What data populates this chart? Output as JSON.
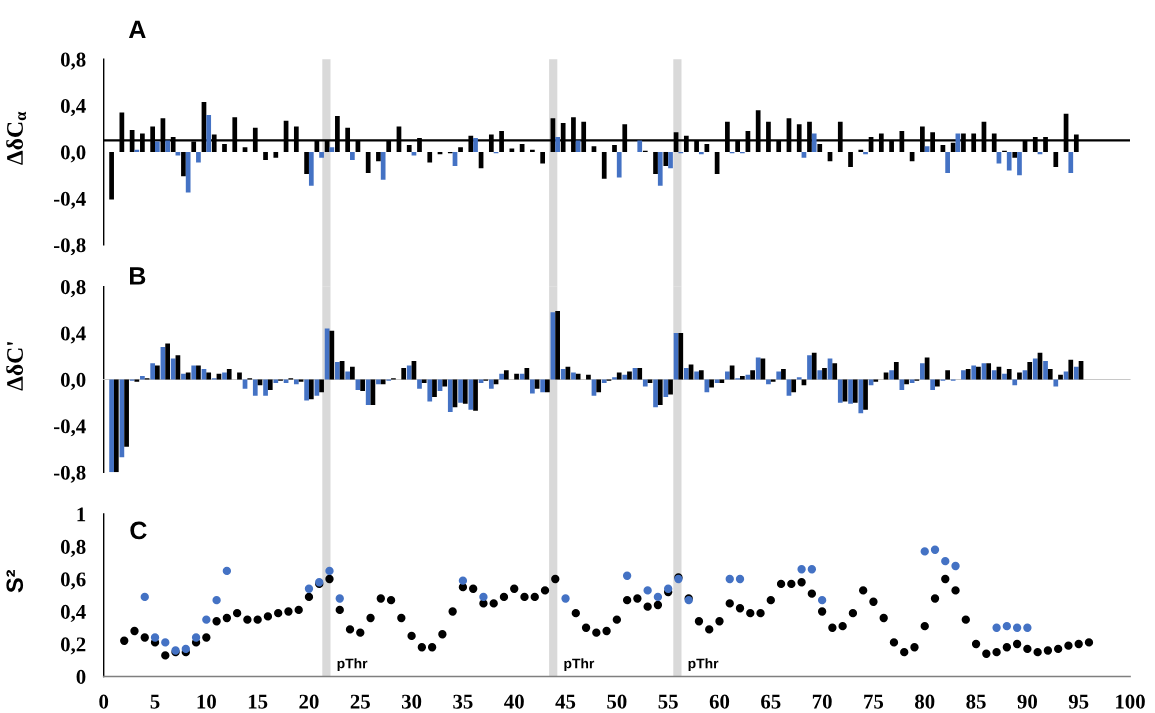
{
  "chart_data": [
    {
      "type": "bar",
      "title": "A",
      "ylabel": "ΔδC$_{α}$",
      "x": [
        1,
        2,
        3,
        4,
        5,
        6,
        7,
        8,
        9,
        10,
        11,
        12,
        13,
        14,
        15,
        16,
        17,
        18,
        19,
        20,
        21,
        22,
        23,
        24,
        25,
        26,
        27,
        28,
        29,
        30,
        31,
        32,
        33,
        34,
        35,
        36,
        37,
        38,
        39,
        40,
        41,
        42,
        43,
        44,
        45,
        46,
        47,
        48,
        49,
        50,
        51,
        52,
        53,
        54,
        55,
        56,
        57,
        58,
        59,
        60,
        61,
        62,
        63,
        64,
        65,
        66,
        67,
        68,
        69,
        70,
        71,
        72,
        73,
        74,
        75,
        76,
        77,
        78,
        79,
        80,
        81,
        82,
        83,
        84,
        85,
        86,
        87,
        88,
        89,
        90,
        91,
        92,
        93,
        94,
        95
      ],
      "series": [
        {
          "color": "#000000",
          "values": [
            -0.41,
            0.34,
            0.19,
            0.16,
            0.22,
            0.29,
            0.13,
            -0.21,
            0.09,
            0.43,
            0.15,
            0.07,
            0.3,
            0.04,
            0.21,
            -0.07,
            -0.05,
            0.27,
            0.22,
            -0.19,
            0.1,
            0.1,
            0.31,
            0.21,
            0.1,
            -0.18,
            -0.08,
            0.1,
            0.22,
            0.06,
            0.12,
            -0.09,
            -0.02,
            -0.01,
            0.04,
            0.14,
            -0.14,
            0.15,
            0.18,
            0.03,
            0.07,
            0.02,
            -0.1,
            0.29,
            0.25,
            0.3,
            0.26,
            0.05,
            -0.23,
            0.06,
            0.24,
            null,
            0.01,
            -0.19,
            -0.12,
            0.17,
            0.14,
            0.1,
            0.07,
            -0.19,
            0.26,
            0.1,
            0.18,
            0.36,
            0.26,
            0.1,
            0.29,
            0.24,
            0.26,
            0.07,
            -0.08,
            0.26,
            -0.13,
            0.02,
            0.13,
            0.16,
            0.1,
            0.18,
            -0.08,
            0.22,
            0.17,
            0.06,
            0.08,
            0.16,
            0.16,
            0.26,
            0.16,
            0.01,
            -0.05,
            0.1,
            0.13,
            0.13,
            -0.13,
            0.33,
            0.15
          ]
        },
        {
          "color": "#4472c4",
          "values": [
            null,
            null,
            0.02,
            null,
            0.09,
            0.1,
            -0.03,
            -0.35,
            -0.09,
            0.32,
            null,
            null,
            null,
            null,
            null,
            null,
            null,
            null,
            null,
            -0.29,
            -0.05,
            0.04,
            null,
            -0.07,
            null,
            null,
            -0.24,
            null,
            null,
            -0.03,
            null,
            null,
            null,
            -0.12,
            null,
            0.12,
            null,
            -0.01,
            null,
            null,
            null,
            null,
            null,
            0.13,
            null,
            0.1,
            null,
            null,
            null,
            -0.22,
            null,
            0.1,
            null,
            -0.29,
            -0.14,
            -0.01,
            null,
            -0.02,
            null,
            null,
            -0.01,
            -0.01,
            null,
            null,
            null,
            null,
            null,
            -0.05,
            0.16,
            null,
            null,
            null,
            null,
            -0.02,
            null,
            null,
            null,
            null,
            null,
            0.05,
            null,
            -0.18,
            0.16,
            null,
            null,
            null,
            -0.1,
            -0.16,
            -0.2,
            null,
            -0.02,
            null,
            null,
            -0.18,
            null
          ]
        }
      ],
      "xlim": [
        0,
        100
      ],
      "ylim": [
        -0.8,
        0.8
      ],
      "yticks": [
        {
          "value": 0.8,
          "label": "0,8"
        },
        {
          "value": 0.4,
          "label": "0,4"
        },
        {
          "value": 0.0,
          "label": "0,0"
        },
        {
          "value": -0.4,
          "label": "-0,4"
        },
        {
          "value": -0.8,
          "label": "-0,8"
        }
      ],
      "tick_labels": "y",
      "ref_lines": [
        {
          "axis": "y",
          "value": 0.1,
          "color": "#000000"
        }
      ],
      "bands": [
        {
          "axis": "x",
          "from": 21.3,
          "to": 22.1,
          "color": "#d9d9d9"
        },
        {
          "axis": "x",
          "from": 43.4,
          "to": 44.2,
          "color": "#d9d9d9"
        },
        {
          "axis": "x",
          "from": 55.5,
          "to": 56.3,
          "color": "#d9d9d9"
        }
      ]
    },
    {
      "type": "bar",
      "title": "B",
      "ylabel": "ΔδC'",
      "x": [
        1,
        2,
        3,
        4,
        5,
        6,
        7,
        8,
        9,
        10,
        11,
        12,
        13,
        14,
        15,
        16,
        17,
        18,
        19,
        20,
        21,
        22,
        23,
        24,
        25,
        26,
        27,
        28,
        29,
        30,
        31,
        32,
        33,
        34,
        35,
        36,
        37,
        38,
        39,
        40,
        41,
        42,
        43,
        44,
        45,
        46,
        47,
        48,
        49,
        50,
        51,
        52,
        53,
        54,
        55,
        56,
        57,
        58,
        59,
        60,
        61,
        62,
        63,
        64,
        65,
        66,
        67,
        68,
        69,
        70,
        71,
        72,
        73,
        74,
        75,
        76,
        77,
        78,
        79,
        80,
        81,
        82,
        83,
        84,
        85,
        86,
        87,
        88,
        89,
        90,
        91,
        92,
        93,
        94,
        95
      ],
      "series": [
        {
          "color": "#4472c4",
          "values": [
            -0.8,
            -0.67,
            -0.01,
            0.03,
            0.14,
            0.28,
            0.18,
            0.05,
            0.12,
            0.09,
            0.01,
            0.06,
            null,
            -0.08,
            -0.14,
            -0.14,
            -0.03,
            -0.03,
            -0.04,
            -0.18,
            -0.14,
            0.44,
            0.15,
            0.07,
            -0.09,
            -0.22,
            -0.04,
            -0.01,
            null,
            0.12,
            -0.08,
            -0.19,
            -0.1,
            -0.28,
            -0.2,
            -0.26,
            -0.03,
            -0.08,
            0.05,
            null,
            0.05,
            -0.12,
            -0.11,
            0.58,
            0.09,
            0.06,
            null,
            -0.14,
            -0.03,
            0.02,
            0.04,
            0.1,
            -0.06,
            -0.24,
            -0.15,
            0.4,
            0.1,
            0.07,
            -0.11,
            -0.03,
            0.07,
            0.01,
            0.04,
            0.19,
            -0.04,
            0.07,
            -0.14,
            0.02,
            0.21,
            0.08,
            0.18,
            -0.2,
            -0.21,
            -0.29,
            -0.05,
            null,
            0.08,
            -0.09,
            -0.03,
            0.14,
            -0.09,
            -0.01,
            -0.01,
            0.08,
            0.12,
            0.14,
            0.08,
            0.05,
            -0.05,
            0.08,
            0.18,
            0.16,
            -0.06,
            0.07,
            0.11
          ]
        },
        {
          "color": "#000000",
          "values": [
            -0.8,
            -0.58,
            -0.02,
            0.01,
            0.12,
            0.31,
            0.21,
            0.06,
            0.12,
            0.06,
            0.05,
            0.09,
            0.06,
            0.01,
            -0.05,
            -0.09,
            -0.01,
            0.01,
            -0.02,
            -0.17,
            -0.11,
            0.42,
            0.16,
            0.11,
            -0.1,
            -0.22,
            -0.04,
            0.01,
            0.1,
            0.16,
            -0.03,
            -0.15,
            -0.06,
            -0.24,
            -0.21,
            -0.27,
            -0.01,
            -0.04,
            0.08,
            0.05,
            0.1,
            -0.08,
            -0.11,
            0.59,
            0.11,
            0.05,
            0.04,
            -0.11,
            -0.01,
            0.06,
            0.07,
            0.1,
            -0.03,
            -0.22,
            -0.13,
            0.4,
            0.13,
            0.08,
            -0.07,
            -0.03,
            0.12,
            0.03,
            0.08,
            0.18,
            -0.02,
            0.09,
            -0.11,
            -0.05,
            0.23,
            0.1,
            0.14,
            -0.19,
            -0.2,
            -0.26,
            -0.02,
            0.06,
            0.15,
            -0.04,
            -0.01,
            0.19,
            -0.06,
            0.08,
            null,
            0.09,
            0.11,
            0.14,
            0.11,
            0.09,
            0.06,
            0.15,
            0.23,
            0.09,
            0.04,
            0.17,
            0.16
          ]
        }
      ],
      "xlim": [
        0,
        100
      ],
      "ylim": [
        -0.8,
        0.8
      ],
      "yticks": [
        {
          "value": 0.8,
          "label": "0,8"
        },
        {
          "value": 0.4,
          "label": "0,4"
        },
        {
          "value": 0.0,
          "label": "0,0"
        },
        {
          "value": -0.4,
          "label": "-0,4"
        },
        {
          "value": -0.8,
          "label": "-0,8"
        }
      ],
      "tick_labels": "y",
      "bands": [
        {
          "axis": "x",
          "from": 21.3,
          "to": 22.1,
          "color": "#d9d9d9"
        },
        {
          "axis": "x",
          "from": 43.4,
          "to": 44.2,
          "color": "#d9d9d9"
        },
        {
          "axis": "x",
          "from": 55.5,
          "to": 56.3,
          "color": "#d9d9d9"
        }
      ]
    },
    {
      "type": "scatter",
      "title": "C",
      "ylabel": "S²",
      "series": [
        {
          "color": "#000000",
          "x": [
            2,
            3,
            4,
            5,
            6,
            7,
            8,
            9,
            10,
            11,
            12,
            13,
            14,
            15,
            16,
            17,
            18,
            19,
            20,
            21,
            22,
            23,
            24,
            25,
            26,
            27,
            28,
            29,
            30,
            31,
            32,
            33,
            34,
            35,
            36,
            37,
            38,
            39,
            40,
            41,
            42,
            43,
            44,
            45,
            46,
            47,
            48,
            49,
            50,
            51,
            52,
            53,
            54,
            55,
            56,
            57,
            58,
            59,
            60,
            61,
            62,
            63,
            64,
            65,
            66,
            67,
            68,
            69,
            70,
            71,
            72,
            73,
            74,
            75,
            76,
            77,
            78,
            79,
            80,
            81,
            82,
            83,
            84,
            85,
            86,
            87,
            88,
            89,
            90,
            91,
            92,
            93,
            94,
            95,
            96
          ],
          "values": [
            0.22,
            0.28,
            0.24,
            0.21,
            0.13,
            0.15,
            0.15,
            0.21,
            0.24,
            0.34,
            0.36,
            0.39,
            0.35,
            0.35,
            0.37,
            0.39,
            0.4,
            0.41,
            0.49,
            0.57,
            0.6,
            0.41,
            0.29,
            0.27,
            0.36,
            0.48,
            0.47,
            0.36,
            0.25,
            0.18,
            0.18,
            0.26,
            0.4,
            0.55,
            0.54,
            0.45,
            0.45,
            0.49,
            0.54,
            0.49,
            0.49,
            0.53,
            0.6,
            null,
            0.39,
            0.3,
            0.27,
            0.28,
            0.35,
            0.47,
            0.48,
            0.43,
            0.44,
            0.52,
            0.61,
            0.48,
            0.34,
            0.29,
            0.34,
            0.45,
            0.42,
            0.39,
            0.39,
            0.47,
            0.57,
            0.57,
            0.58,
            0.51,
            0.4,
            0.3,
            0.31,
            0.39,
            0.53,
            0.46,
            0.36,
            0.21,
            0.15,
            0.18,
            0.31,
            0.48,
            0.6,
            0.53,
            0.35,
            0.2,
            0.14,
            0.15,
            0.18,
            0.2,
            0.17,
            0.15,
            0.16,
            0.17,
            0.19,
            0.2,
            0.21
          ]
        },
        {
          "color": "#4472c4",
          "x": [
            4,
            5,
            6,
            7,
            8,
            9,
            10,
            11,
            12,
            20,
            21,
            22,
            23,
            35,
            37,
            45,
            51,
            53,
            54,
            55,
            56,
            57,
            61,
            62,
            68,
            69,
            70,
            80,
            81,
            82,
            83,
            87,
            88,
            89,
            90
          ],
          "values": [
            0.49,
            0.24,
            0.21,
            0.16,
            0.17,
            0.24,
            0.35,
            0.47,
            0.65,
            0.54,
            0.58,
            0.65,
            0.48,
            0.59,
            0.49,
            0.48,
            0.62,
            0.53,
            0.49,
            0.54,
            0.6,
            0.47,
            0.6,
            0.6,
            0.66,
            0.66,
            0.47,
            0.77,
            0.78,
            0.71,
            0.68,
            0.3,
            0.31,
            0.3,
            0.3
          ]
        }
      ],
      "xlim": [
        0,
        100
      ],
      "xticks": [
        0,
        5,
        10,
        15,
        20,
        25,
        30,
        35,
        40,
        45,
        50,
        55,
        60,
        65,
        70,
        75,
        80,
        85,
        90,
        95,
        100
      ],
      "ylim": [
        0,
        1
      ],
      "yticks": [
        0,
        {
          "value": 0.2,
          "label": "0,2"
        },
        {
          "value": 0.4,
          "label": "0,4"
        },
        {
          "value": 0.6,
          "label": "0,6"
        },
        {
          "value": 0.8,
          "label": "0,8"
        },
        1
      ],
      "marker": "circle",
      "bands": [
        {
          "axis": "x",
          "from": 21.3,
          "to": 22.1,
          "color": "#d9d9d9",
          "label": "pThr"
        },
        {
          "axis": "x",
          "from": 43.4,
          "to": 44.2,
          "color": "#d9d9d9",
          "label": "pThr"
        },
        {
          "axis": "x",
          "from": 55.5,
          "to": 56.3,
          "color": "#d9d9d9",
          "label": "pThr"
        }
      ]
    }
  ]
}
